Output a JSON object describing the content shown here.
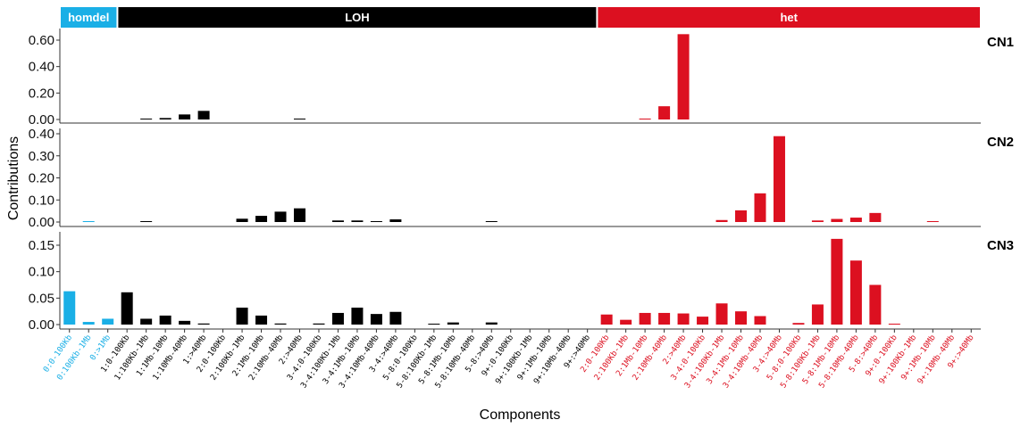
{
  "chart_data": {
    "type": "bar",
    "xlabel": "Components",
    "ylabel": "Contributions",
    "grid": false,
    "legend": "none",
    "groups": [
      {
        "name": "homdel",
        "color": "#1aafe6",
        "count": 3
      },
      {
        "name": "LOH",
        "color": "#000000",
        "count": 25
      },
      {
        "name": "het",
        "color": "#dc1020",
        "count": 20
      }
    ],
    "categories": [
      "0:0-100Kb",
      "0:100Kb-1Mb",
      "0:>1Mb",
      "1:0-100Kb",
      "1:100Kb-1Mb",
      "1:1Mb-10Mb",
      "1:10Mb-40Mb",
      "1:>40Mb",
      "2:0-100Kb",
      "2:100Kb-1Mb",
      "2:1Mb-10Mb",
      "2:10Mb-40Mb",
      "2:>40Mb",
      "3-4:0-100Kb",
      "3-4:100Kb-1Mb",
      "3-4:1Mb-10Mb",
      "3-4:10Mb-40Mb",
      "3-4:>40Mb",
      "5-8:0-100Kb",
      "5-8:100Kb-1Mb",
      "5-8:1Mb-10Mb",
      "5-8:10Mb-40Mb",
      "5-8:>40Mb",
      "9+:0-100Kb",
      "9+:100Kb-1Mb",
      "9+:1Mb-10Mb",
      "9+:10Mb-40Mb",
      "9+:>40Mb",
      "2:0-100Kb",
      "2:100Kb-1Mb",
      "2:1Mb-10Mb",
      "2:10Mb-40Mb",
      "2:>40Mb",
      "3-4:0-100Kb",
      "3-4:100Kb-1Mb",
      "3-4:1Mb-10Mb",
      "3-4:10Mb-40Mb",
      "3-4:>40Mb",
      "5-8:0-100Kb",
      "5-8:100Kb-1Mb",
      "5-8:1Mb-10Mb",
      "5-8:10Mb-40Mb",
      "5-8:>40Mb",
      "9+:0-100Kb",
      "9+:100Kb-1Mb",
      "9+:1Mb-10Mb",
      "9+:10Mb-40Mb",
      "9+:>40Mb"
    ],
    "series": [
      {
        "name": "CN1",
        "ylim": [
          0,
          0.68
        ],
        "yticks": [
          "0.00",
          "0.20",
          "0.40",
          "0.60"
        ],
        "values": [
          0,
          0,
          0,
          0,
          0.004,
          0.011,
          0.038,
          0.065,
          0,
          0,
          0,
          0,
          0.004,
          0,
          0,
          0,
          0,
          0,
          0,
          0,
          0,
          0,
          0,
          0,
          0,
          0,
          0,
          0,
          0,
          0,
          0.005,
          0.1,
          0.645,
          0,
          0,
          0,
          0,
          0,
          0,
          0,
          0,
          0,
          0,
          0,
          0,
          0,
          0,
          0
        ]
      },
      {
        "name": "CN2",
        "ylim": [
          0,
          0.42
        ],
        "yticks": [
          "0.00",
          "0.10",
          "0.20",
          "0.30",
          "0.40"
        ],
        "values": [
          0,
          0.003,
          0,
          0,
          0.002,
          0,
          0,
          0,
          0,
          0.015,
          0.028,
          0.047,
          0.062,
          0,
          0.007,
          0.007,
          0.004,
          0.012,
          0,
          0,
          0,
          0,
          0.004,
          0,
          0,
          0,
          0,
          0,
          0,
          0,
          0,
          0,
          0,
          0,
          0.009,
          0.053,
          0.13,
          0.389,
          0,
          0.007,
          0.014,
          0.02,
          0.041,
          0,
          0,
          0.001,
          0,
          0
        ]
      },
      {
        "name": "CN3",
        "ylim": [
          0,
          0.17
        ],
        "yticks": [
          "0.00",
          "0.05",
          "0.10",
          "0.15"
        ],
        "values": [
          0.063,
          0.005,
          0.011,
          0.061,
          0.011,
          0.017,
          0.007,
          0.002,
          0,
          0.032,
          0.017,
          0.002,
          0,
          0.002,
          0.022,
          0.032,
          0.02,
          0.024,
          0,
          0.001,
          0.004,
          0,
          0.004,
          0,
          0,
          0,
          0,
          0,
          0.019,
          0.009,
          0.022,
          0.022,
          0.021,
          0.015,
          0.04,
          0.025,
          0.016,
          0,
          0.003,
          0.038,
          0.162,
          0.121,
          0.075,
          0.001,
          0,
          0,
          0,
          0
        ]
      }
    ]
  }
}
